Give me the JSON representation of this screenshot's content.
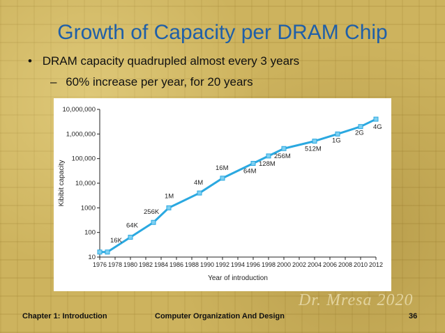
{
  "slide": {
    "title": "Growth of Capacity per DRAM Chip",
    "bullet_1": "DRAM capacity quadrupled almost every 3 years",
    "bullet_1_marker": "•",
    "bullet_2": "60% increase per year, for 20 years",
    "bullet_2_marker": "–"
  },
  "footer": {
    "left": "Chapter 1: Introduction",
    "center": "Computer Organization And Design",
    "page": "36"
  },
  "watermark": "Dr. Mresa 2020",
  "colors": {
    "title": "#1f5fa8",
    "series": "#2aa8e0",
    "marker_fill": "#7fd0f2"
  },
  "chart_data": {
    "type": "line",
    "xlabel": "Year of introduction",
    "ylabel": "Kibibit capacity",
    "yscale": "log",
    "xlim": [
      1976,
      2012
    ],
    "ylim": [
      10,
      10000000
    ],
    "x_ticks": [
      "1976",
      "1978",
      "1980",
      "1982",
      "1984",
      "1986",
      "1988",
      "1990",
      "1992",
      "1994",
      "1996",
      "1998",
      "2000",
      "2002",
      "2004",
      "2006",
      "2008",
      "2010",
      "2012"
    ],
    "y_ticks": [
      "10",
      "100",
      "1000",
      "10,000",
      "100,000",
      "1,000,000",
      "10,000,000"
    ],
    "series": [
      {
        "name": "DRAM capacity",
        "points": [
          {
            "x": 1976,
            "y": 16,
            "label": ""
          },
          {
            "x": 1977,
            "y": 16,
            "label": "16K"
          },
          {
            "x": 1980,
            "y": 64,
            "label": "64K"
          },
          {
            "x": 1983,
            "y": 256,
            "label": "256K"
          },
          {
            "x": 1985,
            "y": 1000,
            "label": "1M"
          },
          {
            "x": 1989,
            "y": 4000,
            "label": "4M"
          },
          {
            "x": 1992,
            "y": 16000,
            "label": "16M"
          },
          {
            "x": 1996,
            "y": 64000,
            "label": "64M"
          },
          {
            "x": 1998,
            "y": 128000,
            "label": "128M"
          },
          {
            "x": 2000,
            "y": 256000,
            "label": "256M"
          },
          {
            "x": 2004,
            "y": 512000,
            "label": "512M"
          },
          {
            "x": 2007,
            "y": 1000000,
            "label": "1G"
          },
          {
            "x": 2010,
            "y": 2000000,
            "label": "2G"
          },
          {
            "x": 2012,
            "y": 4000000,
            "label": "4G"
          }
        ]
      }
    ]
  }
}
